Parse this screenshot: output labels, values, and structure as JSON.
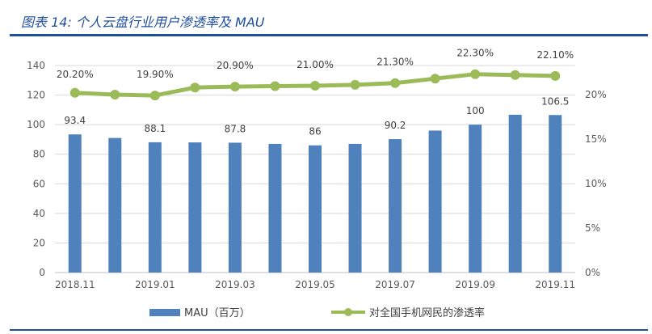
{
  "title": "图表 14:  个人云盘行业用户渗透率及 MAU",
  "chart_data": {
    "type": "bar+line",
    "categories": [
      "2018.11",
      "2018.12",
      "2019.01",
      "2019.02",
      "2019.03",
      "2019.04",
      "2019.05",
      "2019.06",
      "2019.07",
      "2019.08",
      "2019.09",
      "2019.10",
      "2019.11"
    ],
    "x_tick_labels": [
      "2018.11",
      "2019.01",
      "2019.03",
      "2019.05",
      "2019.07",
      "2019.09",
      "2019.11"
    ],
    "series": [
      {
        "name": "MAU（百万）",
        "type": "bar",
        "axis": "left",
        "color": "#4f81bd",
        "values": [
          93.4,
          91,
          88.1,
          88,
          87.8,
          87,
          86,
          87,
          90.2,
          96,
          100,
          106.7,
          106.5
        ],
        "data_labels": [
          "93.4",
          "",
          "88.1",
          "",
          "87.8",
          "",
          "86",
          "",
          "90.2",
          "",
          "100",
          "",
          "106.5"
        ]
      },
      {
        "name": "对全国手机网民的渗透率",
        "type": "line",
        "axis": "right",
        "color": "#9bbb59",
        "values": [
          20.2,
          20.0,
          19.9,
          20.8,
          20.9,
          20.95,
          21.0,
          21.1,
          21.3,
          21.8,
          22.3,
          22.2,
          22.1
        ],
        "data_labels": [
          "20.20%",
          "",
          "19.90%",
          "",
          "20.90%",
          "",
          "21.00%",
          "",
          "21.30%",
          "",
          "22.30%",
          "",
          "22.10%"
        ]
      }
    ],
    "left_axis": {
      "ylim": [
        0,
        140
      ],
      "ticks": [
        "0",
        "20",
        "40",
        "60",
        "80",
        "100",
        "120",
        "140"
      ]
    },
    "right_axis": {
      "ylim": [
        0,
        25
      ],
      "ticks": [
        "0%",
        "5%",
        "10%",
        "15%",
        "20%"
      ]
    },
    "grid": true,
    "legend_position": "bottom"
  }
}
